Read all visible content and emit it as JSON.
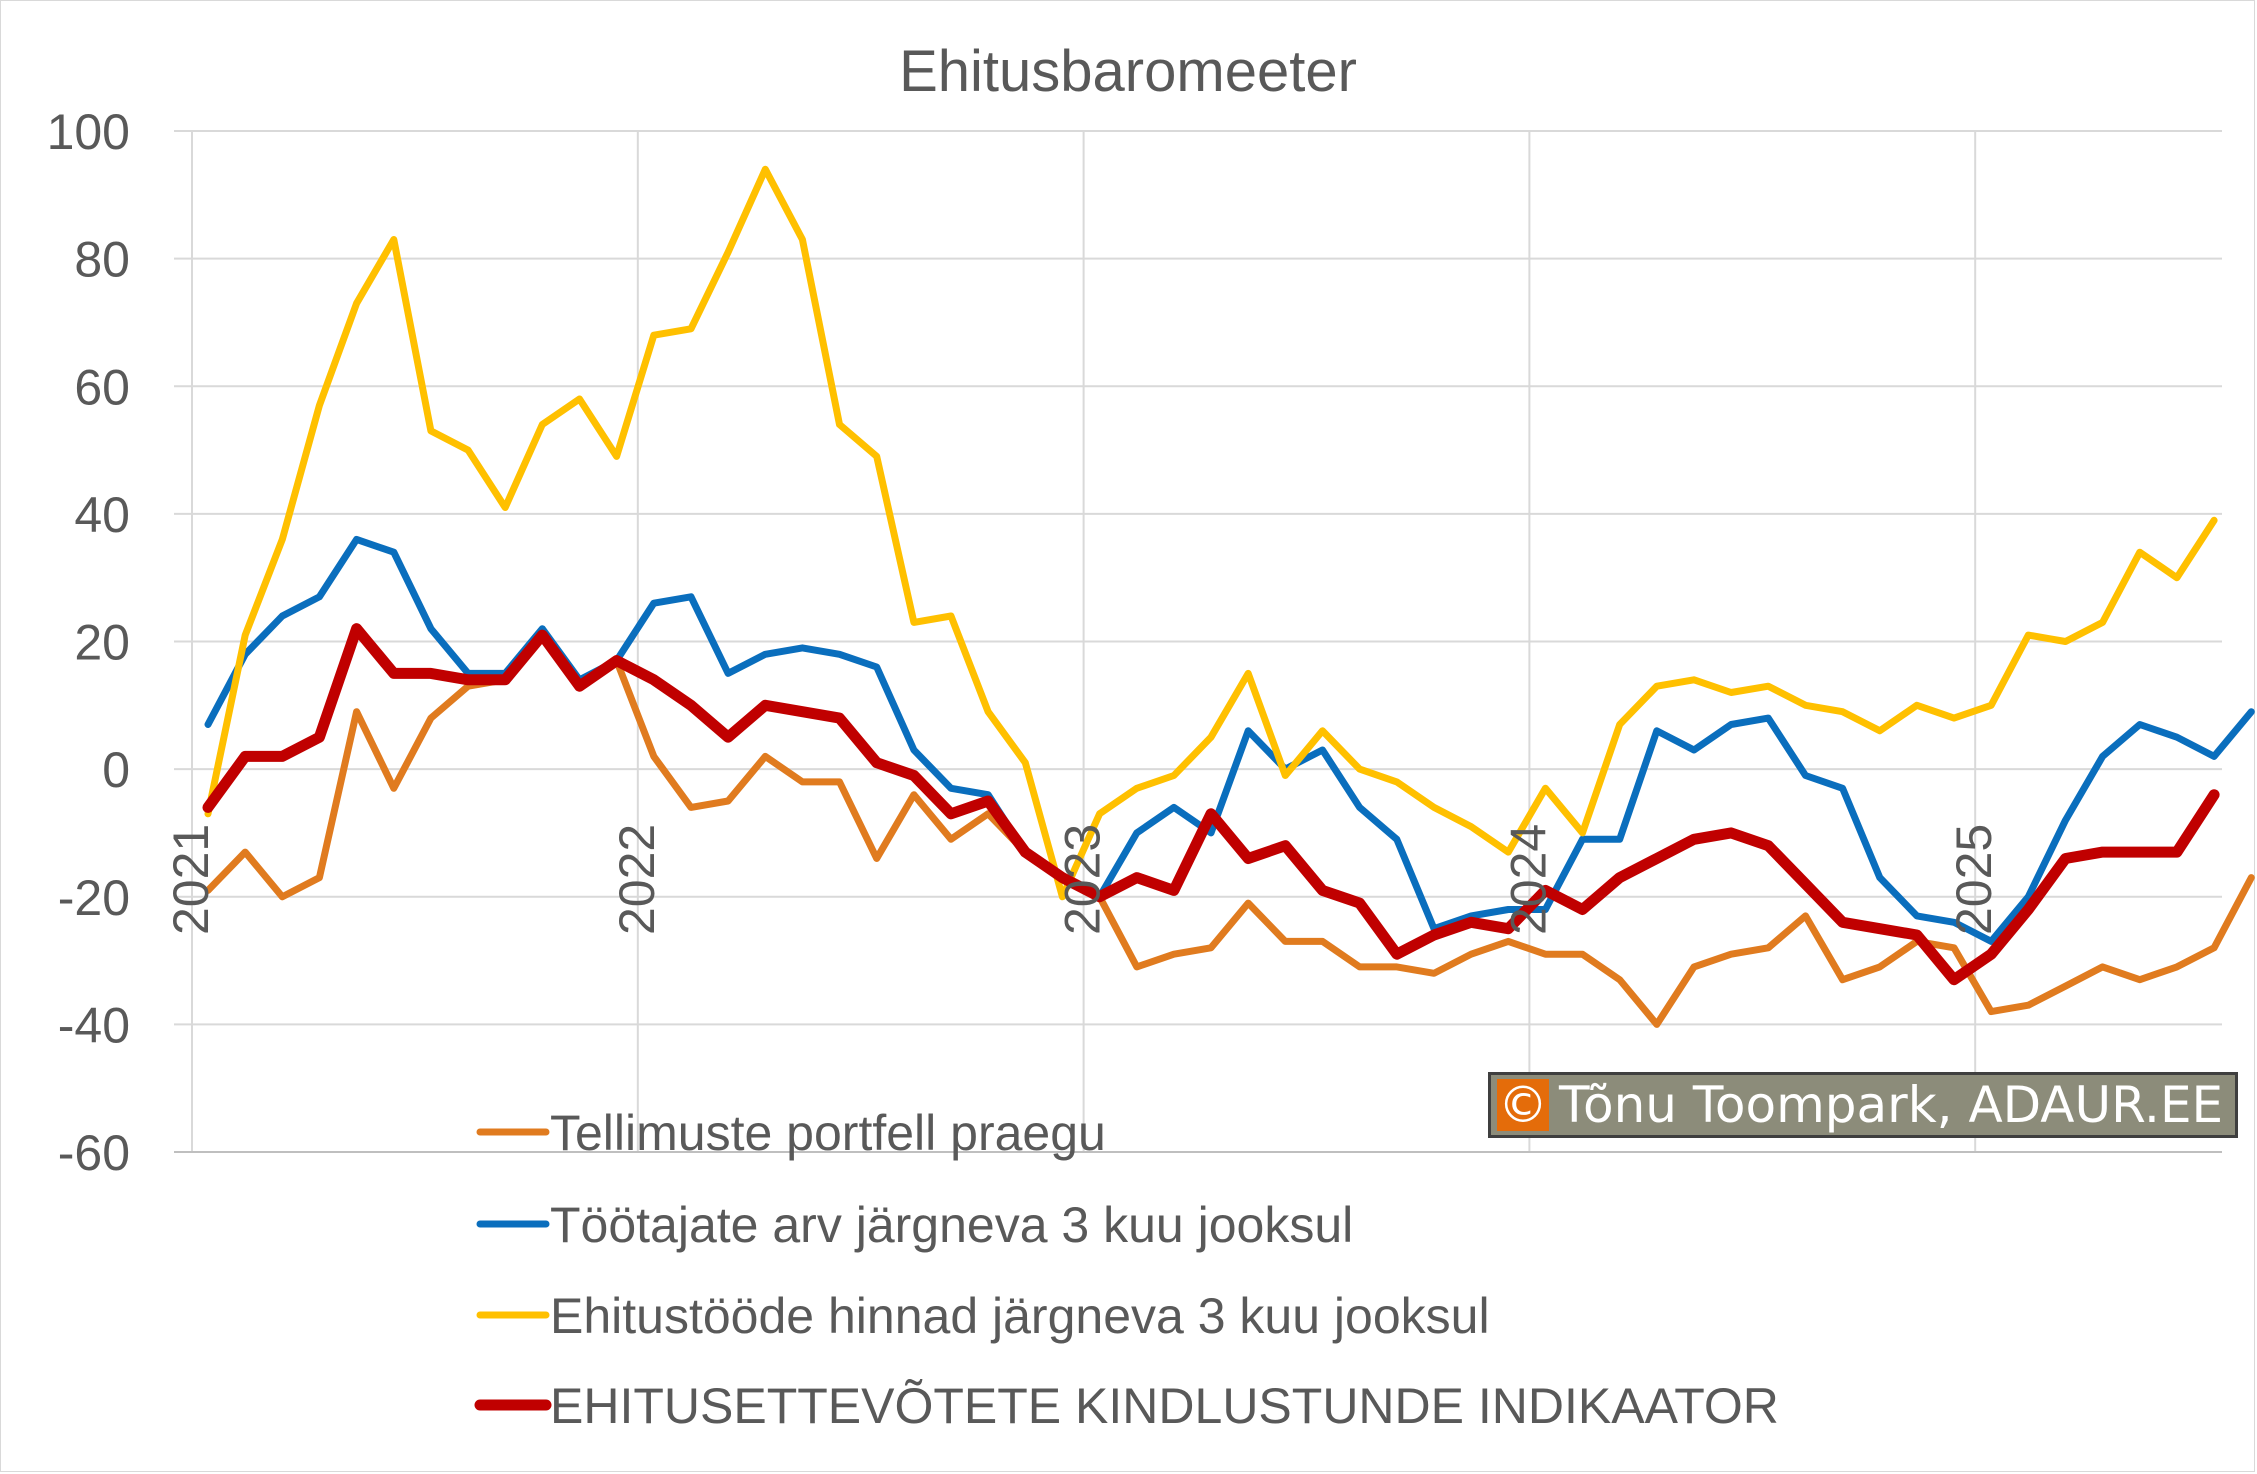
{
  "chart_data": {
    "type": "line",
    "title": "Ehitusbaromeeter",
    "xlabel": "",
    "ylabel": "",
    "ylim": [
      -60,
      100
    ],
    "yticks": [
      100,
      80,
      60,
      40,
      20,
      0,
      -20,
      -40,
      -60
    ],
    "x_start": "2021-01",
    "x_year_labels": [
      "2021",
      "2022",
      "2023",
      "2024",
      "2025"
    ],
    "grid": true,
    "legend_position": "bottom-left",
    "series": [
      {
        "name": "Tellimuste portfell praegu",
        "color": "#e07b1f",
        "width": 7,
        "values": [
          -19,
          -13,
          -20,
          -17,
          9,
          -3,
          8,
          13,
          14,
          21,
          13,
          17,
          2,
          -6,
          -5,
          2,
          -2,
          -2,
          -14,
          -4,
          -11,
          -7,
          -13,
          -17,
          -20,
          -31,
          -29,
          -28,
          -21,
          -27,
          -27,
          -31,
          -31,
          -32,
          -29,
          -27,
          -29,
          -29,
          -33,
          -40,
          -31,
          -29,
          -28,
          -23,
          -33,
          -31,
          -27,
          -28,
          -38,
          -37,
          -34,
          -31,
          -33,
          -31,
          -28,
          -17
        ]
      },
      {
        "name": "Töötajate arv järgneva 3 kuu jooksul",
        "color": "#0a6ebd",
        "width": 7,
        "values": [
          7,
          18,
          24,
          27,
          36,
          34,
          22,
          15,
          15,
          22,
          14,
          17,
          26,
          27,
          15,
          18,
          19,
          18,
          16,
          3,
          -3,
          -4,
          -13,
          -17,
          -20,
          -10,
          -6,
          -10,
          6,
          0,
          3,
          -6,
          -11,
          -25,
          -23,
          -22,
          -22,
          -11,
          -11,
          6,
          3,
          7,
          8,
          -1,
          -3,
          -17,
          -23,
          -24,
          -27,
          -20,
          -8,
          2,
          7,
          5,
          2,
          9
        ]
      },
      {
        "name": "Ehitustööde hinnad järgneva 3 kuu jooksul",
        "color": "#ffc000",
        "width": 7,
        "values": [
          -7,
          21,
          36,
          57,
          73,
          83,
          53,
          50,
          41,
          54,
          58,
          49,
          68,
          69,
          81,
          94,
          83,
          54,
          49,
          23,
          24,
          9,
          1,
          -20,
          -7,
          -3,
          -1,
          5,
          15,
          -1,
          6,
          0,
          -2,
          -6,
          -9,
          -13,
          -3,
          -10,
          7,
          13,
          14,
          12,
          13,
          10,
          9,
          6,
          10,
          8,
          10,
          21,
          20,
          23,
          34,
          30,
          39
        ]
      },
      {
        "name": "EHITUSETTEVÕTETE KINDLUSTUNDE INDIKAATOR",
        "color": "#c00000",
        "width": 11,
        "values": [
          -6,
          2,
          2,
          5,
          22,
          15,
          15,
          14,
          14,
          21,
          13,
          17,
          14,
          10,
          5,
          10,
          9,
          8,
          1,
          -1,
          -7,
          -5,
          -13,
          -17,
          -20,
          -17,
          -19,
          -7,
          -14,
          -12,
          -19,
          -21,
          -29,
          -26,
          -24,
          -25,
          -19,
          -22,
          -17,
          -14,
          -11,
          -10,
          -12,
          -18,
          -24,
          -25,
          -26,
          -33,
          -29,
          -22,
          -14,
          -13,
          -13,
          -13,
          -4
        ]
      }
    ]
  },
  "watermark": {
    "symbol": "©",
    "text": "Tõnu Toompark, ADAUR.EE"
  }
}
